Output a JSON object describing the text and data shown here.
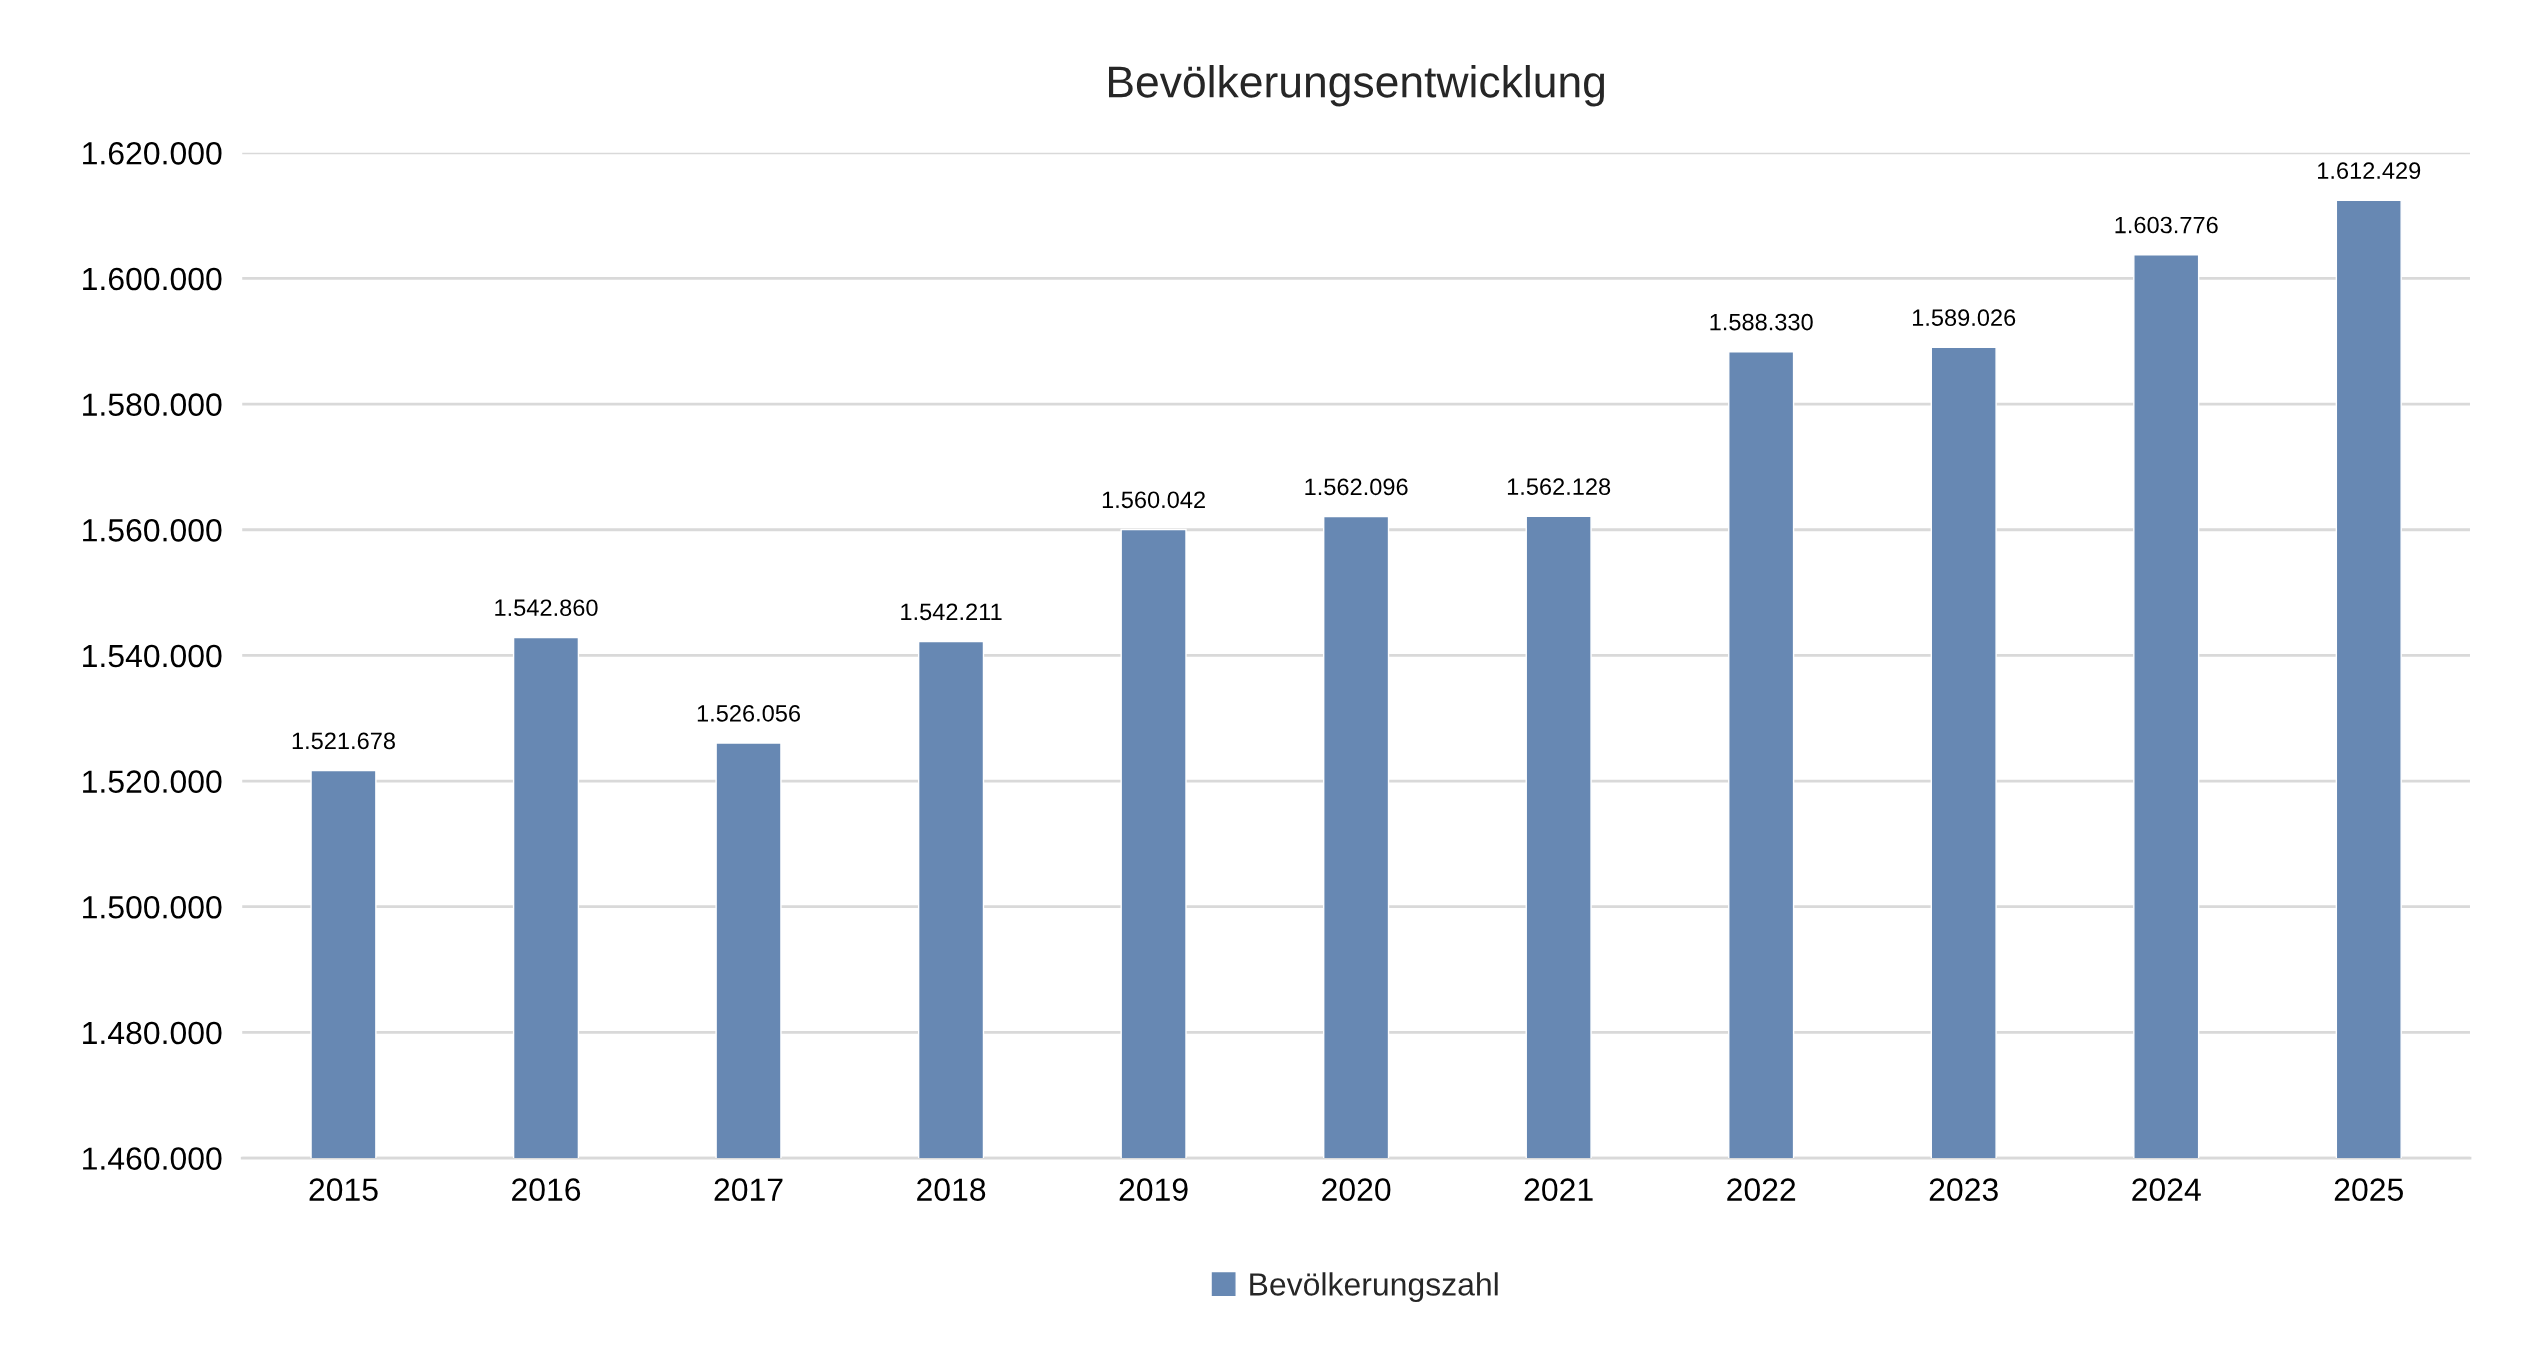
{
  "chart_data": {
    "type": "bar",
    "title": "Bevölkerungsentwicklung",
    "categories": [
      "2015",
      "2016",
      "2017",
      "2018",
      "2019",
      "2020",
      "2021",
      "2022",
      "2023",
      "2024",
      "2025"
    ],
    "series": [
      {
        "name": "Bevölkerungszahl",
        "color": "#6788b3",
        "values": [
          1521678,
          1542860,
          1526056,
          1542211,
          1560042,
          1562096,
          1562128,
          1588330,
          1589026,
          1603776,
          1612429
        ],
        "value_labels": [
          "1.521.678",
          "1.542.860",
          "1.526.056",
          "1.542.211",
          "1.560.042",
          "1.562.096",
          "1.562.128",
          "1.588.330",
          "1.589.026",
          "1.603.776",
          "1.612.429"
        ]
      }
    ],
    "ylim": [
      1460000,
      1620000
    ],
    "yticks": [
      {
        "value": 1460000,
        "label": "1.460.000"
      },
      {
        "value": 1480000,
        "label": "1.480.000"
      },
      {
        "value": 1500000,
        "label": "1.500.000"
      },
      {
        "value": 1520000,
        "label": "1.520.000"
      },
      {
        "value": 1540000,
        "label": "1.540.000"
      },
      {
        "value": 1560000,
        "label": "1.560.000"
      },
      {
        "value": 1580000,
        "label": "1.580.000"
      },
      {
        "value": 1600000,
        "label": "1.600.000"
      },
      {
        "value": 1620000,
        "label": "1.620.000"
      }
    ],
    "grid": "y",
    "legend": "bottom"
  }
}
